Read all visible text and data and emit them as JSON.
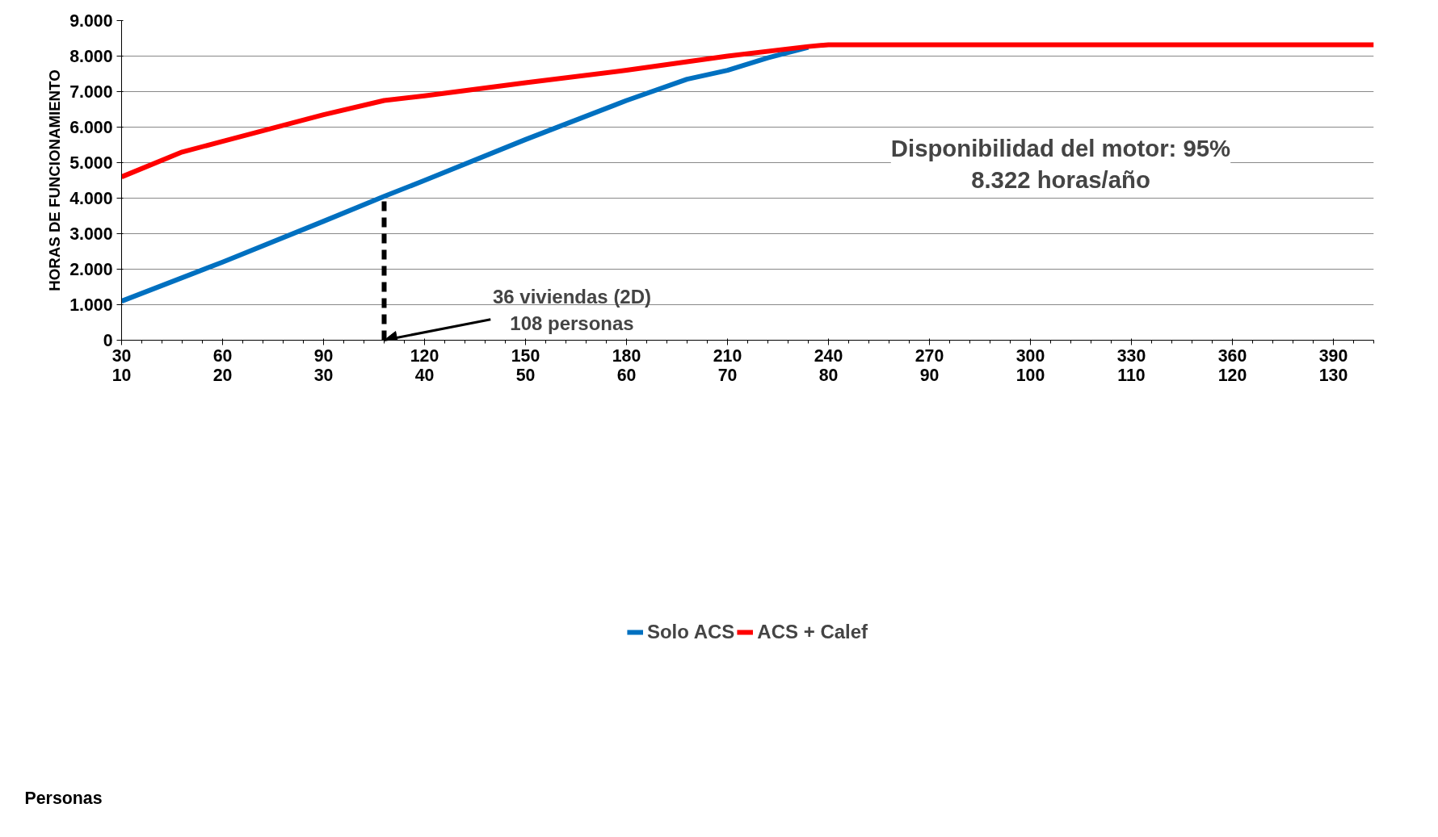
{
  "chart_data": {
    "type": "line",
    "ylabel": "HORAS DE FUNCIONAMIENTO",
    "xlim": [
      30,
      402
    ],
    "xticks": [
      30,
      60,
      90,
      120,
      150,
      180,
      210,
      240,
      270,
      300,
      330,
      360,
      390
    ],
    "x2lim": [
      10,
      134
    ],
    "x2ticks": [
      10,
      20,
      30,
      40,
      50,
      60,
      70,
      80,
      90,
      100,
      110,
      120,
      130
    ],
    "ylim": [
      0,
      9000
    ],
    "yticks": [
      {
        "value": 0,
        "label": "0"
      },
      {
        "value": 1000,
        "label": "1.000"
      },
      {
        "value": 2000,
        "label": "2.000"
      },
      {
        "value": 3000,
        "label": "3.000"
      },
      {
        "value": 4000,
        "label": "4.000"
      },
      {
        "value": 5000,
        "label": "5.000"
      },
      {
        "value": 6000,
        "label": "6.000"
      },
      {
        "value": 7000,
        "label": "7.000"
      },
      {
        "value": 8000,
        "label": "8.000"
      },
      {
        "value": 9000,
        "label": "9.000"
      }
    ],
    "grid": "y",
    "legend": "bottom",
    "line_style": "solid",
    "series": [
      {
        "name": "Solo ACS",
        "color": "#0070c0",
        "x": [
          30,
          60,
          90,
          108,
          120,
          150,
          180,
          198,
          210,
          222,
          234
        ],
        "values": [
          1100,
          2200,
          3350,
          4050,
          4500,
          5650,
          6750,
          7350,
          7600,
          7950,
          8250
        ]
      },
      {
        "name": "ACS + Calef",
        "color": "#ff0000",
        "x": [
          30,
          48,
          60,
          90,
          108,
          120,
          150,
          180,
          210,
          234,
          240,
          402
        ],
        "values": [
          4600,
          5300,
          5600,
          6350,
          6750,
          6880,
          7250,
          7600,
          8000,
          8270,
          8320,
          8320
        ]
      },
      {
        "type": "line",
        "color": "#000000",
        "line_style": "dashed",
        "x": [
          108,
          108
        ],
        "values": [
          0,
          4000
        ]
      }
    ],
    "annotations": [
      "Personas",
      "Disponibilidad del motor: 95%\n8.322 horas/año",
      {
        "text": "36 viviendas (2D)\n108 personas",
        "x": 108,
        "y": 0
      }
    ]
  }
}
